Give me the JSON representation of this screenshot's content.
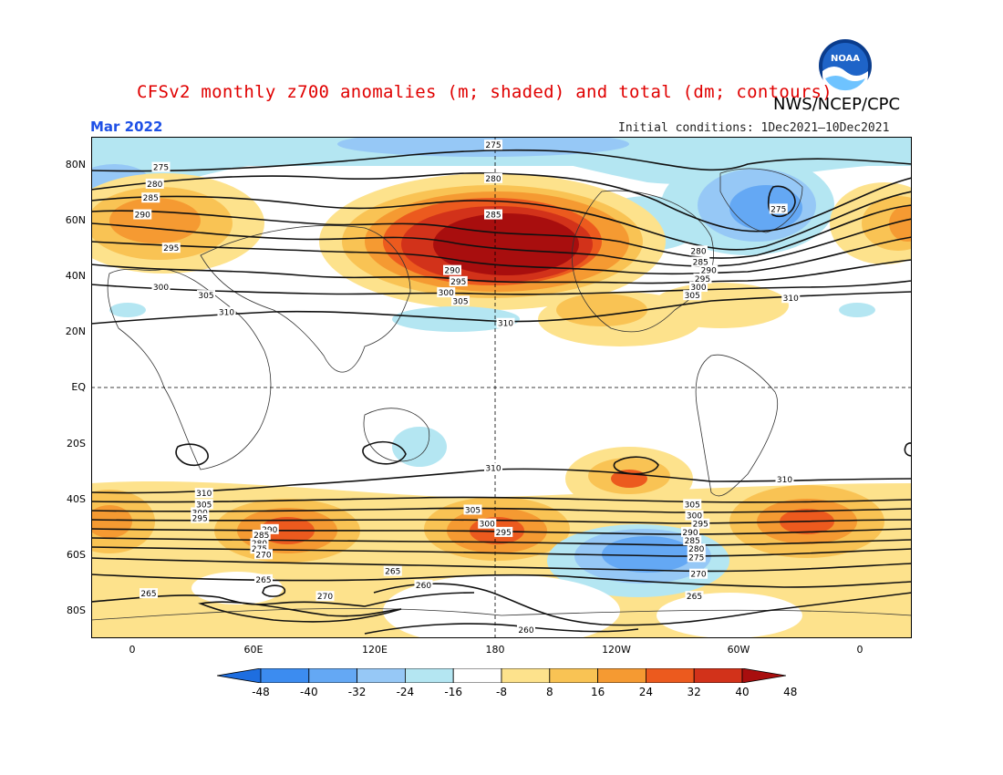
{
  "header": {
    "title": "CFSv2 monthly z700 anomalies (m; shaded) and total (dm; contours)",
    "agency": "NWS/NCEP/CPC",
    "month": "Mar 2022",
    "initial_conditions": "Initial conditions: 1Dec2021–10Dec2021",
    "logo_text": "NOAA"
  },
  "axes": {
    "y_labels": [
      "80N",
      "60N",
      "40N",
      "20N",
      "EQ",
      "20S",
      "40S",
      "60S",
      "80S"
    ],
    "x_labels": [
      "0",
      "60E",
      "120E",
      "180",
      "120W",
      "60W",
      "0"
    ]
  },
  "colorbar": {
    "labels": [
      "-48",
      "-40",
      "-32",
      "-24",
      "-16",
      "-8",
      "8",
      "16",
      "24",
      "32",
      "40",
      "48"
    ],
    "colors": [
      "#1e6ee0",
      "#3c8cf0",
      "#64a8f4",
      "#96c8f6",
      "#b4e6f2",
      "#ffffff",
      "#fde28c",
      "#f9c354",
      "#f59a32",
      "#ec5a1e",
      "#d2321a",
      "#a80e0e"
    ]
  },
  "contour_labels": [
    {
      "text": "275",
      "lon": 180,
      "lat": 87
    },
    {
      "text": "280",
      "lon": 180,
      "lat": 75
    },
    {
      "text": "285",
      "lon": 180,
      "lat": 62
    },
    {
      "text": "290",
      "lon": 160,
      "lat": 42
    },
    {
      "text": "295",
      "lon": 163,
      "lat": 38
    },
    {
      "text": "300",
      "lon": 157,
      "lat": 34
    },
    {
      "text": "305",
      "lon": 164,
      "lat": 31
    },
    {
      "text": "310",
      "lon": 186,
      "lat": 23
    },
    {
      "text": "275",
      "lon": 18,
      "lat": 79
    },
    {
      "text": "280",
      "lon": 15,
      "lat": 73
    },
    {
      "text": "285",
      "lon": 13,
      "lat": 68
    },
    {
      "text": "290",
      "lon": 9,
      "lat": 62
    },
    {
      "text": "295",
      "lon": 23,
      "lat": 50
    },
    {
      "text": "300",
      "lon": 18,
      "lat": 36
    },
    {
      "text": "305",
      "lon": 40,
      "lat": 33
    },
    {
      "text": "310",
      "lon": 50,
      "lat": 27
    },
    {
      "text": "275",
      "lon": 319,
      "lat": 64
    },
    {
      "text": "280",
      "lon": 280,
      "lat": 49
    },
    {
      "text": "285",
      "lon": 281,
      "lat": 45
    },
    {
      "text": "290",
      "lon": 285,
      "lat": 42
    },
    {
      "text": "295",
      "lon": 282,
      "lat": 39
    },
    {
      "text": "300",
      "lon": 280,
      "lat": 36
    },
    {
      "text": "305",
      "lon": 277,
      "lat": 33
    },
    {
      "text": "310",
      "lon": 325,
      "lat": 32
    },
    {
      "text": "310",
      "lon": 180,
      "lat": -29
    },
    {
      "text": "310",
      "lon": 322,
      "lat": -33
    },
    {
      "text": "310",
      "lon": 39,
      "lat": -38
    },
    {
      "text": "305",
      "lon": 39,
      "lat": -42
    },
    {
      "text": "300",
      "lon": 37,
      "lat": -45
    },
    {
      "text": "295",
      "lon": 37,
      "lat": -47
    },
    {
      "text": "305",
      "lon": 170,
      "lat": -44
    },
    {
      "text": "300",
      "lon": 177,
      "lat": -49
    },
    {
      "text": "295",
      "lon": 185,
      "lat": -52
    },
    {
      "text": "290",
      "lon": 71,
      "lat": -51
    },
    {
      "text": "285",
      "lon": 67,
      "lat": -53
    },
    {
      "text": "280",
      "lon": 66,
      "lat": -56
    },
    {
      "text": "275",
      "lon": 66,
      "lat": -58
    },
    {
      "text": "270",
      "lon": 68,
      "lat": -60
    },
    {
      "text": "305",
      "lon": 277,
      "lat": -42
    },
    {
      "text": "300",
      "lon": 278,
      "lat": -46
    },
    {
      "text": "295",
      "lon": 281,
      "lat": -49
    },
    {
      "text": "290",
      "lon": 276,
      "lat": -52
    },
    {
      "text": "285",
      "lon": 277,
      "lat": -55
    },
    {
      "text": "280",
      "lon": 279,
      "lat": -58
    },
    {
      "text": "275",
      "lon": 279,
      "lat": -61
    },
    {
      "text": "270",
      "lon": 280,
      "lat": -67
    },
    {
      "text": "265",
      "lon": 278,
      "lat": -75
    },
    {
      "text": "265",
      "lon": 12,
      "lat": -74
    },
    {
      "text": "265",
      "lon": 131,
      "lat": -66
    },
    {
      "text": "260",
      "lon": 146,
      "lat": -71
    },
    {
      "text": "270",
      "lon": 98,
      "lat": -75
    },
    {
      "text": "265",
      "lon": 68,
      "lat": -69
    },
    {
      "text": "260",
      "lon": 196,
      "lat": -87
    }
  ]
}
